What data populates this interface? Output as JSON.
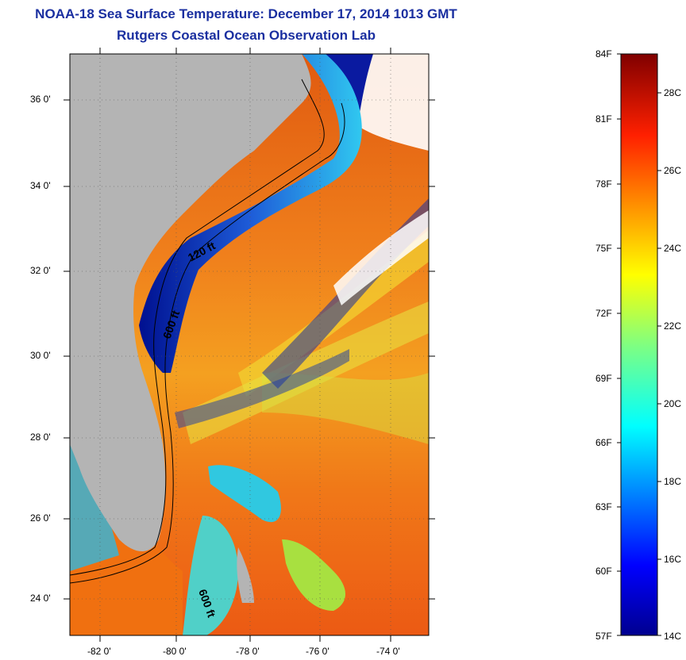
{
  "header": {
    "title": "NOAA-18 Sea Surface Temperature:  December 17, 2014 1013 GMT",
    "subtitle": "Rutgers Coastal Ocean Observation Lab"
  },
  "map": {
    "lat_ticks": [
      "36 0'",
      "34 0'",
      "32 0'",
      "30 0'",
      "28 0'",
      "26 0'",
      "24 0'"
    ],
    "lon_ticks": [
      "-82 0'",
      "-80 0'",
      "-78 0'",
      "-76 0'",
      "-74 0'"
    ],
    "contour_labels": [
      "120 ft",
      "600 ft",
      "600 ft"
    ],
    "colors": {
      "land": "#b4b4b4",
      "warm": "#f06a16",
      "cold": "#0010a0"
    }
  },
  "colorbar": {
    "f_labels": [
      "84F",
      "81F",
      "78F",
      "75F",
      "72F",
      "69F",
      "66F",
      "63F",
      "60F",
      "57F"
    ],
    "c_labels": [
      "28C",
      "26C",
      "24C",
      "22C",
      "20C",
      "18C",
      "16C",
      "14C"
    ]
  }
}
